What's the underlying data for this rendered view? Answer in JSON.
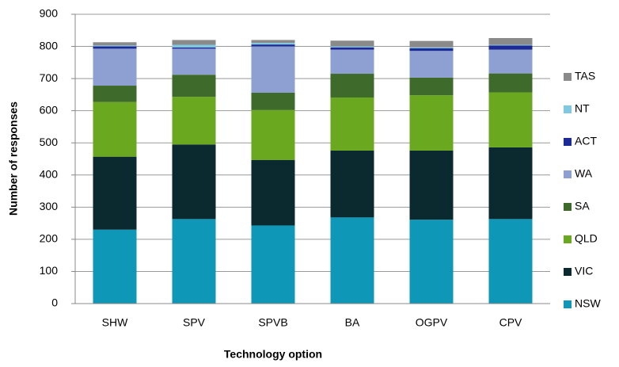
{
  "chart_data": {
    "type": "stacked_bar",
    "xlabel": "Technology option",
    "ylabel": "Number of responses",
    "categories": [
      "SHW",
      "SPV",
      "SPVB",
      "BA",
      "OGPV",
      "CPV"
    ],
    "series": [
      {
        "name": "NSW",
        "color": "#0f97b8",
        "values": [
          230,
          263,
          243,
          268,
          261,
          263
        ]
      },
      {
        "name": "VIC",
        "color": "#0b2a2f",
        "values": [
          227,
          232,
          204,
          208,
          215,
          223
        ]
      },
      {
        "name": "QLD",
        "color": "#6aa91f",
        "values": [
          170,
          148,
          155,
          165,
          172,
          171
        ]
      },
      {
        "name": "SA",
        "color": "#3e6b2b",
        "values": [
          51,
          69,
          54,
          74,
          55,
          59
        ]
      },
      {
        "name": "WA",
        "color": "#8e9fd2",
        "values": [
          115,
          81,
          144,
          75,
          83,
          74
        ]
      },
      {
        "name": "ACT",
        "color": "#1c2a96",
        "values": [
          7,
          4,
          6,
          7,
          8,
          13
        ]
      },
      {
        "name": "NT",
        "color": "#80c8e2",
        "values": [
          3,
          8,
          5,
          3,
          3,
          2
        ]
      },
      {
        "name": "TAS",
        "color": "#8a8a8a",
        "values": [
          10,
          15,
          9,
          18,
          20,
          21
        ]
      }
    ],
    "ylim": [
      0,
      900
    ],
    "yticks": [
      0,
      100,
      200,
      300,
      400,
      500,
      600,
      700,
      800,
      900
    ],
    "grid": true,
    "legend": "right"
  }
}
